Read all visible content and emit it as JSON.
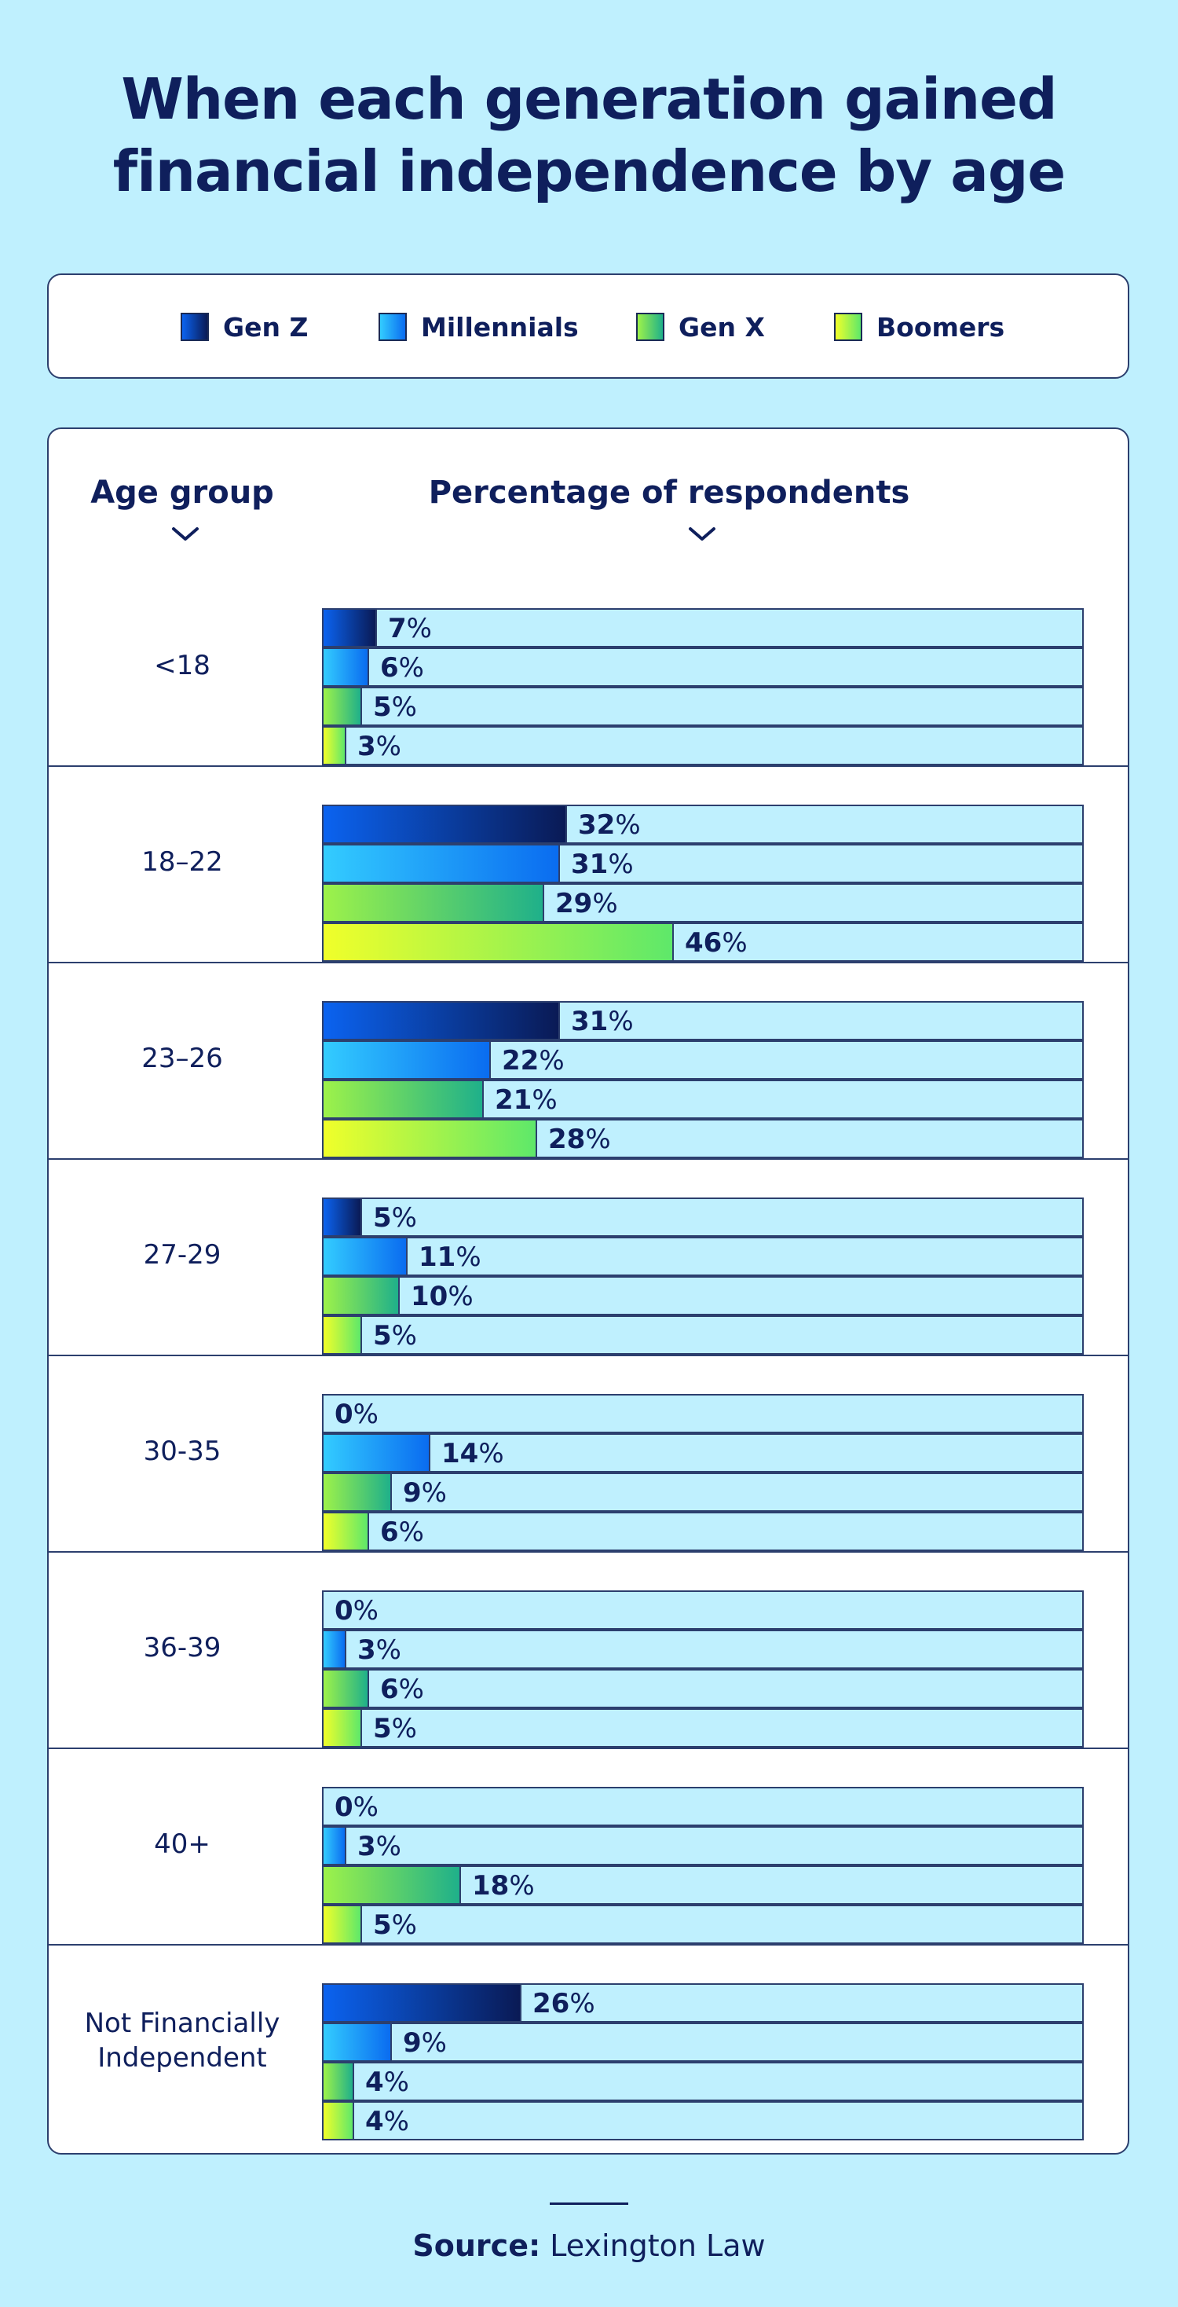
{
  "title": [
    "When each generation gained",
    "financial independence by age"
  ],
  "legend": [
    {
      "name": "Gen Z",
      "color_from": "#0b63f0",
      "color_to": "#0a1a55"
    },
    {
      "name": "Millennials",
      "color_from": "#33ccff",
      "color_to": "#0a6cf0"
    },
    {
      "name": "Gen X",
      "color_from": "#9df24a",
      "color_to": "#1fb08a"
    },
    {
      "name": "Boomers",
      "color_from": "#f0ff2a",
      "color_to": "#5ee86a"
    }
  ],
  "headers": {
    "age_group": "Age group",
    "percentage": "Percentage of respondents"
  },
  "source": {
    "label": "Source:",
    "text": "Lexington Law"
  },
  "chart_data": {
    "type": "bar",
    "orientation": "horizontal",
    "title": "When each generation gained financial independence by age",
    "xlabel": "Percentage of respondents",
    "ylabel": "Age group",
    "unit": "%",
    "xlim": [
      0,
      100
    ],
    "categories": [
      "<18",
      "18–22",
      "23–26",
      "27-29",
      "30-35",
      "36-39",
      "40+",
      "Not Financially Independent"
    ],
    "series": [
      {
        "name": "Gen Z",
        "values": [
          7,
          32,
          31,
          5,
          0,
          0,
          0,
          26
        ]
      },
      {
        "name": "Millennials",
        "values": [
          6,
          31,
          22,
          11,
          14,
          3,
          3,
          9
        ]
      },
      {
        "name": "Gen X",
        "values": [
          5,
          29,
          21,
          10,
          9,
          6,
          18,
          4
        ]
      },
      {
        "name": "Boomers",
        "values": [
          3,
          46,
          28,
          5,
          6,
          5,
          5,
          4
        ]
      }
    ],
    "category_display": [
      "<18",
      "18–22",
      "23–26",
      "27-29",
      "30-35",
      "36-39",
      "40+",
      "Not Financially\nIndependent"
    ]
  }
}
